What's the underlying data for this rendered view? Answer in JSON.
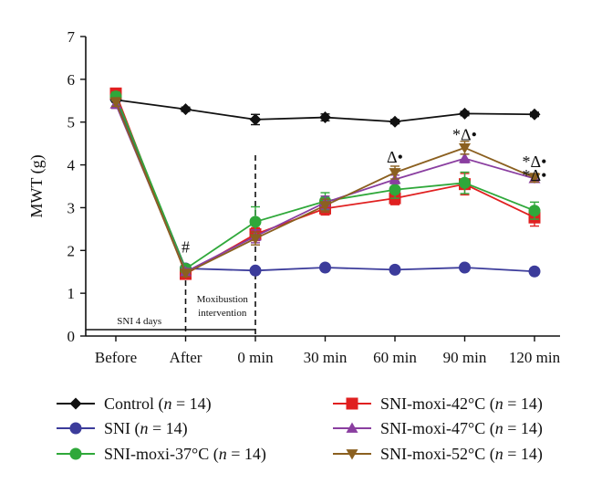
{
  "chart_data": {
    "type": "line",
    "categories": [
      "Before",
      "After",
      "0 min",
      "30 min",
      "60 min",
      "90 min",
      "120 min"
    ],
    "ylabel": "MWT (g)",
    "ylim": [
      0,
      7
    ],
    "yticks": [
      "0",
      "1",
      "2",
      "3",
      "4",
      "5",
      "6",
      "7"
    ],
    "grid": false,
    "legend_position": "bottom",
    "series": [
      {
        "name": "Control (n = 14)",
        "label": "Control (",
        "n": "n",
        "suffix": " = 14)",
        "color": "#111111",
        "marker": "diamond",
        "values": [
          5.52,
          5.3,
          5.06,
          5.11,
          5.01,
          5.2,
          5.18
        ],
        "errors": [
          0.05,
          0.05,
          0.12,
          0.08,
          0.05,
          0.05,
          0.05
        ]
      },
      {
        "name": "SNI (n = 14)",
        "label": "SNI (",
        "n": "n",
        "suffix": " = 14)",
        "color": "#3c3c9b",
        "marker": "circle",
        "values": [
          5.55,
          1.58,
          1.53,
          1.6,
          1.55,
          1.6,
          1.51
        ],
        "errors": [
          0.05,
          0.05,
          0.05,
          0.05,
          0.05,
          0.05,
          0.05
        ]
      },
      {
        "name": "SNI-moxi-37°C (n = 14)",
        "label": "SNI-moxi-37°C (",
        "n": "n",
        "suffix": " = 14)",
        "color": "#2fa83a",
        "marker": "circle",
        "values": [
          5.6,
          1.57,
          2.67,
          3.15,
          3.42,
          3.58,
          2.93
        ],
        "errors": [
          0.1,
          0.1,
          0.35,
          0.2,
          0.2,
          0.25,
          0.2
        ]
      },
      {
        "name": "SNI-moxi-42°C (n = 14)",
        "label": "SNI-moxi-42°C (",
        "n": "n",
        "suffix": " = 14)",
        "color": "#e02020",
        "marker": "square",
        "values": [
          5.67,
          1.45,
          2.38,
          2.98,
          3.22,
          3.55,
          2.77
        ],
        "errors": [
          0.1,
          0.08,
          0.15,
          0.15,
          0.15,
          0.25,
          0.2
        ]
      },
      {
        "name": "SNI-moxi-47°C (n = 14)",
        "label": "SNI-moxi-47°C (",
        "n": "n",
        "suffix": " = 14)",
        "color": "#8a3ea0",
        "marker": "triangle-up",
        "values": [
          5.42,
          1.5,
          2.33,
          3.12,
          3.66,
          4.15,
          3.68
        ],
        "errors": [
          0.1,
          0.08,
          0.15,
          0.15,
          0.1,
          0.1,
          0.08
        ]
      },
      {
        "name": "SNI-moxi-52°C (n = 14)",
        "label": "SNI-moxi-52°C (",
        "n": "n",
        "suffix": " = 14)",
        "color": "#8b6020",
        "marker": "triangle-down",
        "values": [
          5.47,
          1.47,
          2.28,
          3.05,
          3.82,
          4.4,
          3.7
        ],
        "errors": [
          0.1,
          0.08,
          0.15,
          0.15,
          0.15,
          0.15,
          0.1
        ]
      }
    ],
    "annotations": [
      {
        "text": "#",
        "category": "After",
        "y": 1.95
      },
      {
        "text": "Δ•",
        "category": "60 min",
        "y": 4.05
      },
      {
        "text": "*Δ•",
        "category": "90 min",
        "y": 4.58
      },
      {
        "text": "*Δ•",
        "category": "120 min",
        "y": 3.95
      },
      {
        "text": "*Δ•",
        "category": "120 min",
        "y": 3.63
      }
    ],
    "phases": [
      {
        "label": "SNI 4 days",
        "from": "Before",
        "to": "After"
      },
      {
        "label": "Moxibustion",
        "label2": "intervention",
        "from": "After",
        "to": "0 min"
      }
    ]
  }
}
